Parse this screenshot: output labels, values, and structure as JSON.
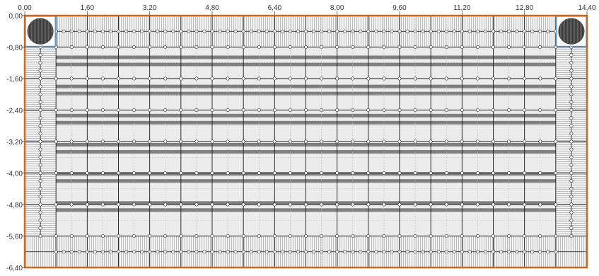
{
  "axes": {
    "x_ticks": [
      "0,00",
      "1,60",
      "3,20",
      "4,80",
      "6,40",
      "8,00",
      "9,60",
      "11,20",
      "12,80",
      "14,40"
    ],
    "y_ticks": [
      "0,00",
      "-0,80",
      "-1,60",
      "-2,40",
      "-3,20",
      "-4,00",
      "-4,80",
      "-5,60",
      "-6,40"
    ]
  },
  "colors": {
    "frame": "#d06a1a",
    "corner_highlight": "#5aa0e0",
    "beam": "#808080",
    "grid_major": "#1a1a1a",
    "grid_minor": "#bfbfbf",
    "pile": "#4a4a4a"
  },
  "plan": {
    "extent_x_m": [
      0,
      14.4
    ],
    "extent_y_m": [
      -6.4,
      0
    ],
    "beam_band_pairs": 6,
    "corner_columns": 2
  }
}
